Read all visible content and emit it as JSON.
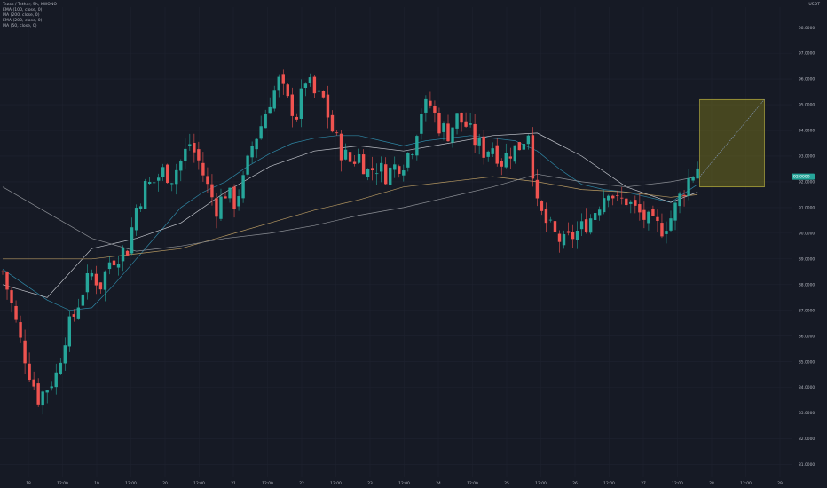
{
  "legend": {
    "symbol": "Tezos / Tether, 5h, KWONO",
    "indicators": [
      "EMA (100, close, 0)",
      "MA (200, close, 0)",
      "EMA (200, close, 0)",
      "MA (50, close, 0)"
    ]
  },
  "axis": {
    "currency": "USDT",
    "price_tag": "92.0000"
  },
  "colors": {
    "background": "#161a25",
    "grid": "#1f2330",
    "up": "#26a69a",
    "down": "#ef5350",
    "ma_teal": "#2e86a4",
    "ma_orange": "#b89a62",
    "ma_white": "#c2c5cc",
    "ma_gray": "#8d9096",
    "target_box_fill": "#6f6b1e",
    "target_box_border": "#c9c043"
  },
  "chart_data": {
    "type": "candlestick",
    "ylim": [
      80.5,
      98.8
    ],
    "y_ticks": [
      "81.0000",
      "82.0000",
      "83.0000",
      "84.0000",
      "85.0000",
      "86.0000",
      "87.0000",
      "88.0000",
      "89.0000",
      "90.0000",
      "91.0000",
      "92.0000",
      "93.0000",
      "94.0000",
      "95.0000",
      "96.0000",
      "97.0000",
      "98.0000"
    ],
    "x_ticks": [
      "18",
      "12:00",
      "19",
      "12:00",
      "20",
      "12:00",
      "21",
      "12:00",
      "22",
      "12:00",
      "23",
      "12:00",
      "24",
      "12:00",
      "25",
      "12:00",
      "26",
      "12:00",
      "27",
      "12:00",
      "28",
      "12:00",
      "29"
    ],
    "close_path": [
      [
        0,
        88.5
      ],
      [
        2,
        87.2
      ],
      [
        4,
        85.8
      ],
      [
        6,
        84.6
      ],
      [
        8,
        83.6
      ],
      [
        10,
        84.0
      ],
      [
        12,
        84.5
      ],
      [
        14,
        86.0
      ],
      [
        16,
        86.8
      ],
      [
        18,
        87.8
      ],
      [
        20,
        88.4
      ],
      [
        22,
        88.0
      ],
      [
        24,
        88.9
      ],
      [
        26,
        89.2
      ],
      [
        28,
        89.4
      ],
      [
        30,
        91.0
      ],
      [
        32,
        91.8
      ],
      [
        34,
        92.0
      ],
      [
        36,
        92.4
      ],
      [
        38,
        92.2
      ],
      [
        40,
        92.8
      ],
      [
        42,
        93.5
      ],
      [
        44,
        92.8
      ],
      [
        46,
        91.8
      ],
      [
        48,
        91.0
      ],
      [
        50,
        91.6
      ],
      [
        52,
        91.2
      ],
      [
        54,
        92.0
      ],
      [
        56,
        93.4
      ],
      [
        58,
        94.2
      ],
      [
        60,
        95.2
      ],
      [
        62,
        95.9
      ],
      [
        64,
        95.1
      ],
      [
        66,
        94.6
      ],
      [
        68,
        96.0
      ],
      [
        70,
        95.4
      ],
      [
        72,
        95.2
      ],
      [
        74,
        94.0
      ],
      [
        76,
        93.2
      ],
      [
        78,
        92.8
      ],
      [
        80,
        93.0
      ],
      [
        82,
        92.4
      ],
      [
        84,
        92.6
      ],
      [
        86,
        92.3
      ],
      [
        88,
        92.6
      ],
      [
        90,
        92.8
      ],
      [
        92,
        93.4
      ],
      [
        94,
        94.8
      ],
      [
        96,
        95.0
      ],
      [
        98,
        94.2
      ],
      [
        100,
        93.9
      ],
      [
        102,
        94.5
      ],
      [
        104,
        94.2
      ],
      [
        106,
        93.6
      ],
      [
        108,
        93.2
      ],
      [
        110,
        93.4
      ],
      [
        112,
        92.8
      ],
      [
        114,
        93.2
      ],
      [
        116,
        93.4
      ],
      [
        118,
        94.0
      ],
      [
        120,
        91.0
      ],
      [
        122,
        90.4
      ],
      [
        124,
        89.9
      ],
      [
        126,
        89.6
      ],
      [
        128,
        89.9
      ],
      [
        130,
        90.2
      ],
      [
        132,
        90.6
      ],
      [
        134,
        91.2
      ],
      [
        136,
        91.8
      ],
      [
        138,
        91.2
      ],
      [
        140,
        91.3
      ],
      [
        142,
        90.9
      ],
      [
        144,
        90.6
      ],
      [
        146,
        90.3
      ],
      [
        148,
        90.2
      ],
      [
        150,
        90.6
      ],
      [
        152,
        91.4
      ],
      [
        154,
        92.1
      ],
      [
        156,
        92.6
      ],
      [
        156.5,
        92.2
      ]
    ],
    "ma_series": [
      {
        "color_key": "ma_teal",
        "points": [
          [
            0,
            88.6
          ],
          [
            5,
            88.0
          ],
          [
            10,
            87.4
          ],
          [
            15,
            87.0
          ],
          [
            20,
            87.1
          ],
          [
            25,
            88.0
          ],
          [
            30,
            89.0
          ],
          [
            35,
            90.0
          ],
          [
            40,
            91.0
          ],
          [
            45,
            91.6
          ],
          [
            50,
            92.0
          ],
          [
            55,
            92.6
          ],
          [
            60,
            93.1
          ],
          [
            65,
            93.5
          ],
          [
            70,
            93.7
          ],
          [
            75,
            93.8
          ],
          [
            80,
            93.8
          ],
          [
            85,
            93.6
          ],
          [
            90,
            93.4
          ],
          [
            95,
            93.6
          ],
          [
            100,
            93.7
          ],
          [
            105,
            93.8
          ],
          [
            110,
            93.7
          ],
          [
            115,
            93.6
          ],
          [
            120,
            93.2
          ],
          [
            125,
            92.5
          ],
          [
            130,
            91.9
          ],
          [
            135,
            91.7
          ],
          [
            140,
            91.6
          ],
          [
            145,
            91.4
          ],
          [
            150,
            91.2
          ],
          [
            156,
            91.9
          ]
        ]
      },
      {
        "color_key": "ma_white",
        "points": [
          [
            0,
            88.0
          ],
          [
            10,
            87.5
          ],
          [
            20,
            89.4
          ],
          [
            30,
            89.8
          ],
          [
            40,
            90.4
          ],
          [
            50,
            91.6
          ],
          [
            60,
            92.6
          ],
          [
            70,
            93.2
          ],
          [
            80,
            93.4
          ],
          [
            90,
            93.2
          ],
          [
            100,
            93.5
          ],
          [
            110,
            93.8
          ],
          [
            120,
            93.9
          ],
          [
            130,
            93.0
          ],
          [
            140,
            91.8
          ],
          [
            150,
            91.2
          ],
          [
            156,
            91.6
          ]
        ]
      },
      {
        "color_key": "ma_orange",
        "points": [
          [
            0,
            89.0
          ],
          [
            20,
            89.0
          ],
          [
            30,
            89.2
          ],
          [
            40,
            89.4
          ],
          [
            50,
            89.9
          ],
          [
            60,
            90.4
          ],
          [
            70,
            90.9
          ],
          [
            80,
            91.3
          ],
          [
            90,
            91.8
          ],
          [
            100,
            92.0
          ],
          [
            110,
            92.2
          ],
          [
            120,
            92.0
          ],
          [
            130,
            91.7
          ],
          [
            140,
            91.6
          ],
          [
            150,
            91.4
          ],
          [
            156,
            91.5
          ]
        ]
      },
      {
        "color_key": "ma_gray",
        "points": [
          [
            0,
            91.8
          ],
          [
            10,
            90.8
          ],
          [
            20,
            89.8
          ],
          [
            30,
            89.3
          ],
          [
            40,
            89.5
          ],
          [
            50,
            89.8
          ],
          [
            60,
            90.0
          ],
          [
            70,
            90.3
          ],
          [
            80,
            90.7
          ],
          [
            90,
            91.0
          ],
          [
            100,
            91.4
          ],
          [
            110,
            91.8
          ],
          [
            120,
            92.3
          ],
          [
            130,
            92.0
          ],
          [
            140,
            91.8
          ],
          [
            150,
            92.0
          ],
          [
            156,
            92.2
          ]
        ]
      }
    ],
    "target_zone": {
      "x_start": 156.5,
      "x_end": 171,
      "y_low": 91.8,
      "y_high": 95.2,
      "line_from": 92.2,
      "line_to": 95.2
    }
  }
}
